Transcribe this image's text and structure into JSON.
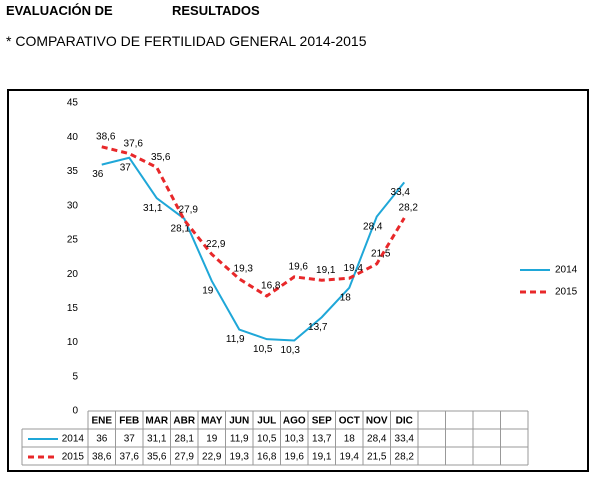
{
  "header": {
    "left": "EVALUACIÓN DE",
    "right": "RESULTADOS",
    "subtitle": "* COMPARATIVO DE FERTILIDAD GENERAL 2014-2015"
  },
  "chart_data": {
    "type": "line",
    "categories": [
      "ENE",
      "FEB",
      "MAR",
      "ABR",
      "MAY",
      "JUN",
      "JUL",
      "AGO",
      "SEP",
      "OCT",
      "NOV",
      "DIC"
    ],
    "series": [
      {
        "name": "2014",
        "color": "#1fa7d8",
        "dashed": false,
        "values": [
          36,
          37,
          31.1,
          28.1,
          19,
          11.9,
          10.5,
          10.3,
          13.7,
          18,
          28.4,
          33.4
        ],
        "value_labels": [
          "36",
          "37",
          "31,1",
          "28,1",
          "19",
          "11,9",
          "10,5",
          "10,3",
          "13,7",
          "18",
          "28,4",
          "33,4"
        ]
      },
      {
        "name": "2015",
        "color": "#e8282a",
        "dashed": true,
        "values": [
          38.6,
          37.6,
          35.6,
          27.9,
          22.9,
          19.3,
          16.8,
          19.6,
          19.1,
          19.4,
          21.5,
          28.2
        ],
        "value_labels": [
          "38,6",
          "37,6",
          "35,6",
          "27,9",
          "22,9",
          "19,3",
          "16,8",
          "19,6",
          "19,1",
          "19,4",
          "21,5",
          "28,2"
        ]
      }
    ],
    "ylim": [
      0,
      45
    ],
    "yticks": [
      0,
      5,
      10,
      15,
      20,
      25,
      30,
      35,
      40,
      45
    ],
    "grid": false,
    "legend": "right"
  }
}
